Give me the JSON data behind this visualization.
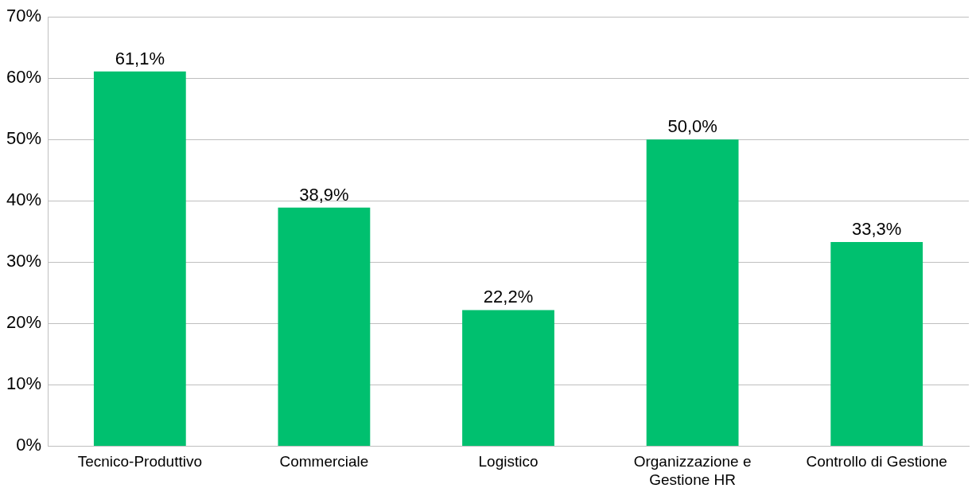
{
  "chart_data": {
    "type": "bar",
    "categories": [
      "Tecnico-Produttivo",
      "Commerciale",
      "Logistico",
      "Organizzazione e Gestione HR",
      "Controllo di Gestione"
    ],
    "values": [
      61.1,
      38.9,
      22.2,
      50.0,
      33.3
    ],
    "value_labels": [
      "61,1%",
      "38,9%",
      "22,2%",
      "50,0%",
      "33,3%"
    ],
    "color": "#00c06f",
    "ylim": [
      0,
      70
    ],
    "yticks": [
      {
        "value": 0,
        "label": "0%"
      },
      {
        "value": 10,
        "label": "10%"
      },
      {
        "value": 20,
        "label": "20%"
      },
      {
        "value": 30,
        "label": "30%"
      },
      {
        "value": 40,
        "label": "40%"
      },
      {
        "value": 50,
        "label": "50%"
      },
      {
        "value": 60,
        "label": "60%"
      },
      {
        "value": 70,
        "label": "70%"
      }
    ],
    "grid": "y"
  }
}
